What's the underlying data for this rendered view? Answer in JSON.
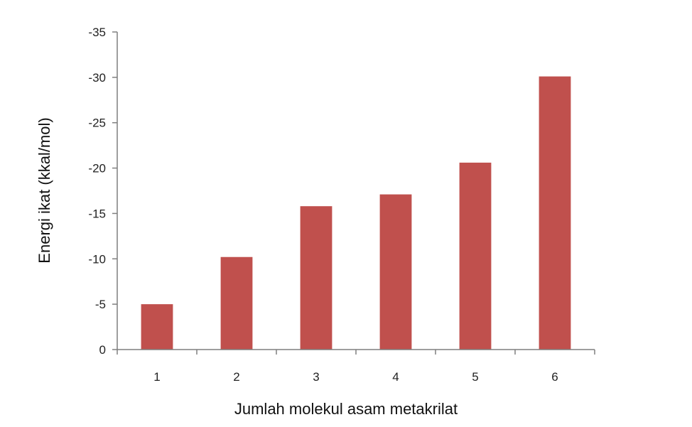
{
  "chart_data": {
    "type": "bar",
    "title": "",
    "xlabel": "Jumlah molekul asam metakrilat",
    "ylabel": "Energi ikat (kkal/mol)",
    "categories": [
      "1",
      "2",
      "3",
      "4",
      "5",
      "6"
    ],
    "values": [
      -5.0,
      -10.2,
      -15.8,
      -17.1,
      -20.6,
      -30.1
    ],
    "ylim": [
      0,
      -35
    ],
    "yticks": [
      "-35",
      "-30",
      "-25",
      "-20",
      "-15",
      "-10",
      "-5",
      "0"
    ],
    "bar_color": "#c0504d",
    "grid": false,
    "legend": "none"
  }
}
